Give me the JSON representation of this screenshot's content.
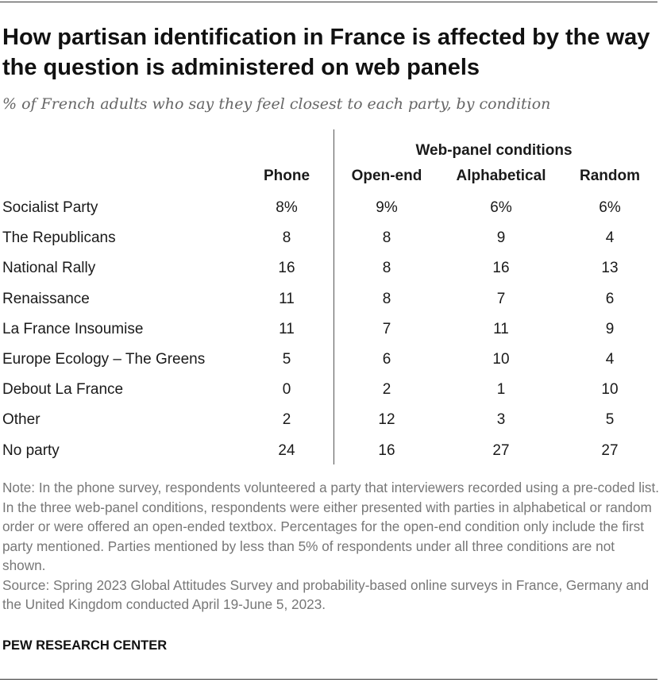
{
  "title": "How partisan identification in France is affected by the way the question is administered on web panels",
  "subtitle": "% of French adults who say they feel closest to each party, by condition",
  "group_header": "Web-panel conditions",
  "columns": [
    "Phone",
    "Open-end",
    "Alphabetical",
    "Random"
  ],
  "rows": [
    {
      "label": "Socialist Party",
      "values": [
        "8%",
        "9%",
        "6%",
        "6%"
      ]
    },
    {
      "label": "The Republicans",
      "values": [
        "8",
        "8",
        "9",
        "4"
      ]
    },
    {
      "label": "National Rally",
      "values": [
        "16",
        "8",
        "16",
        "13"
      ]
    },
    {
      "label": "Renaissance",
      "values": [
        "11",
        "8",
        "7",
        "6"
      ]
    },
    {
      "label": "La France Insoumise",
      "values": [
        "11",
        "7",
        "11",
        "9"
      ]
    },
    {
      "label": "Europe Ecology – The Greens",
      "values": [
        "5",
        "6",
        "10",
        "4"
      ]
    },
    {
      "label": "Debout La France",
      "values": [
        "0",
        "2",
        "1",
        "10"
      ]
    },
    {
      "label": "Other",
      "values": [
        "2",
        "12",
        "3",
        "5"
      ]
    },
    {
      "label": "No party",
      "values": [
        "24",
        "16",
        "27",
        "27"
      ]
    }
  ],
  "note": "Note: In the phone survey, respondents volunteered a party that interviewers recorded using a pre-coded list. In the three web-panel conditions, respondents were either presented with parties in alphabetical or random order or were offered an open-ended textbox. Percentages for the open-end condition only include the first party mentioned. Parties mentioned by less than 5% of respondents under all three conditions are not shown.",
  "source": "Source: Spring 2023 Global Attitudes Survey and probability-based online surveys in France, Germany and the United Kingdom conducted April 19-June 5, 2023.",
  "brand": "PEW RESEARCH CENTER",
  "chart_data": {
    "type": "table",
    "title": "How partisan identification in France is affected by the way the question is administered on web panels",
    "subtitle": "% of French adults who say they feel closest to each party, by condition",
    "unit": "%",
    "categories": [
      "Socialist Party",
      "The Republicans",
      "National Rally",
      "Renaissance",
      "La France Insoumise",
      "Europe Ecology – The Greens",
      "Debout La France",
      "Other",
      "No party"
    ],
    "series": [
      {
        "name": "Phone",
        "values": [
          8,
          8,
          16,
          11,
          11,
          5,
          0,
          2,
          24
        ]
      },
      {
        "name": "Open-end",
        "group": "Web-panel conditions",
        "values": [
          9,
          8,
          8,
          8,
          7,
          6,
          2,
          12,
          16
        ]
      },
      {
        "name": "Alphabetical",
        "group": "Web-panel conditions",
        "values": [
          6,
          9,
          16,
          7,
          11,
          10,
          1,
          3,
          27
        ]
      },
      {
        "name": "Random",
        "group": "Web-panel conditions",
        "values": [
          6,
          4,
          13,
          6,
          9,
          4,
          10,
          5,
          27
        ]
      }
    ]
  }
}
